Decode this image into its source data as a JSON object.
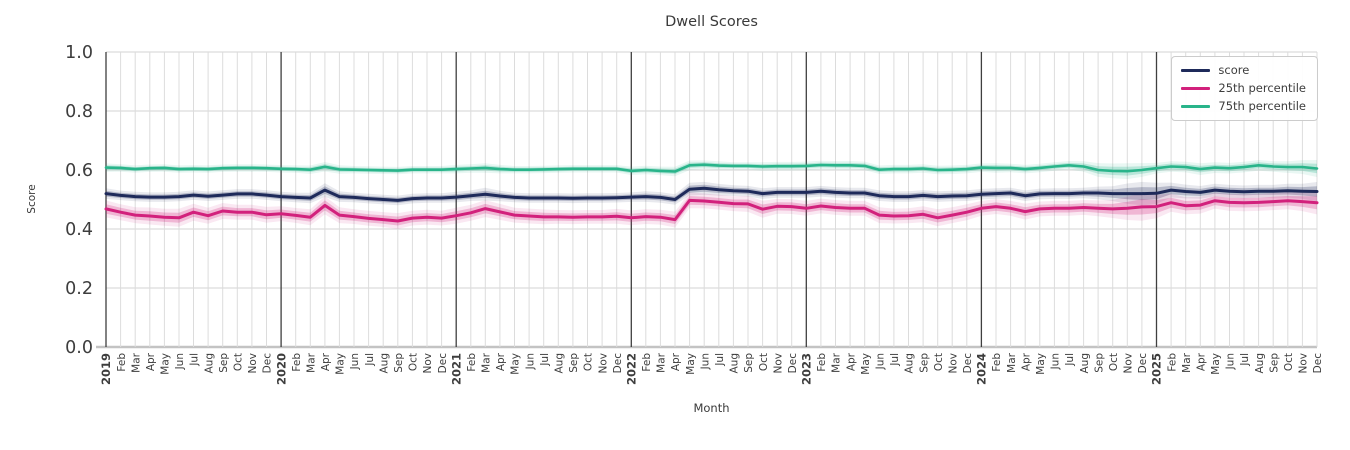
{
  "chart_data": {
    "type": "line",
    "title": "Dwell Scores",
    "xlabel": "Month",
    "ylabel": "Score",
    "ylim": [
      0.0,
      1.0
    ],
    "yticks": [
      0.0,
      0.2,
      0.4,
      0.6,
      0.8,
      1.0
    ],
    "grid": true,
    "legend_position": "upper right",
    "x": [
      "2019",
      "Feb",
      "Mar",
      "Apr",
      "May",
      "Jun",
      "Jul",
      "Aug",
      "Sep",
      "Oct",
      "Nov",
      "Dec",
      "2020",
      "Feb",
      "Mar",
      "Apr",
      "May",
      "Jun",
      "Jul",
      "Aug",
      "Sep",
      "Oct",
      "Nov",
      "Dec",
      "2021",
      "Feb",
      "Mar",
      "Apr",
      "May",
      "Jun",
      "Jul",
      "Aug",
      "Sep",
      "Oct",
      "Nov",
      "Dec",
      "2022",
      "Feb",
      "Mar",
      "Apr",
      "May",
      "Jun",
      "Jul",
      "Aug",
      "Sep",
      "Oct",
      "Nov",
      "Dec",
      "2023",
      "Feb",
      "Mar",
      "Apr",
      "May",
      "Jun",
      "Jul",
      "Aug",
      "Sep",
      "Oct",
      "Nov",
      "Dec",
      "2024",
      "Feb",
      "Mar",
      "Apr",
      "May",
      "Jun",
      "Jul",
      "Aug",
      "Sep",
      "Oct",
      "Nov",
      "Dec",
      "2025",
      "Feb",
      "Mar",
      "Apr",
      "May",
      "Jun",
      "Jul",
      "Aug",
      "Sep",
      "Oct",
      "Nov",
      "Dec"
    ],
    "series": [
      {
        "name": "score",
        "color": "#1e2a5a",
        "line_width": 3,
        "values": [
          0.52,
          0.514,
          0.51,
          0.508,
          0.508,
          0.51,
          0.515,
          0.511,
          0.515,
          0.519,
          0.519,
          0.515,
          0.51,
          0.507,
          0.505,
          0.532,
          0.51,
          0.507,
          0.503,
          0.5,
          0.497,
          0.503,
          0.505,
          0.505,
          0.508,
          0.513,
          0.518,
          0.512,
          0.507,
          0.505,
          0.505,
          0.505,
          0.504,
          0.505,
          0.505,
          0.506,
          0.508,
          0.51,
          0.507,
          0.5,
          0.535,
          0.538,
          0.533,
          0.53,
          0.528,
          0.52,
          0.524,
          0.524,
          0.524,
          0.528,
          0.524,
          0.522,
          0.522,
          0.513,
          0.51,
          0.51,
          0.514,
          0.51,
          0.512,
          0.513,
          0.518,
          0.52,
          0.522,
          0.513,
          0.519,
          0.52,
          0.52,
          0.522,
          0.522,
          0.52,
          0.52,
          0.52,
          0.521,
          0.532,
          0.527,
          0.524,
          0.532,
          0.528,
          0.526,
          0.528,
          0.528,
          0.53,
          0.528,
          0.527
        ],
        "band": [
          0.01,
          0.009,
          0.009,
          0.009,
          0.009,
          0.009,
          0.009,
          0.009,
          0.009,
          0.009,
          0.009,
          0.009,
          0.009,
          0.009,
          0.01,
          0.013,
          0.01,
          0.009,
          0.009,
          0.009,
          0.009,
          0.009,
          0.009,
          0.009,
          0.01,
          0.01,
          0.012,
          0.01,
          0.009,
          0.009,
          0.009,
          0.009,
          0.009,
          0.009,
          0.009,
          0.009,
          0.009,
          0.01,
          0.01,
          0.01,
          0.012,
          0.012,
          0.011,
          0.01,
          0.01,
          0.01,
          0.01,
          0.01,
          0.01,
          0.01,
          0.01,
          0.01,
          0.01,
          0.01,
          0.01,
          0.01,
          0.01,
          0.01,
          0.01,
          0.01,
          0.01,
          0.01,
          0.01,
          0.01,
          0.01,
          0.01,
          0.01,
          0.01,
          0.012,
          0.014,
          0.019,
          0.022,
          0.02,
          0.014,
          0.013,
          0.012,
          0.012,
          0.012,
          0.012,
          0.012,
          0.012,
          0.013,
          0.014,
          0.018
        ]
      },
      {
        "name": "25th percentile",
        "color": "#d2217c",
        "line_width": 3,
        "values": [
          0.468,
          0.457,
          0.447,
          0.444,
          0.44,
          0.438,
          0.457,
          0.445,
          0.461,
          0.457,
          0.457,
          0.448,
          0.452,
          0.446,
          0.44,
          0.48,
          0.447,
          0.442,
          0.436,
          0.432,
          0.427,
          0.437,
          0.44,
          0.437,
          0.445,
          0.455,
          0.469,
          0.458,
          0.447,
          0.444,
          0.441,
          0.441,
          0.44,
          0.441,
          0.441,
          0.443,
          0.438,
          0.442,
          0.44,
          0.432,
          0.497,
          0.495,
          0.491,
          0.486,
          0.485,
          0.467,
          0.477,
          0.476,
          0.47,
          0.478,
          0.473,
          0.47,
          0.47,
          0.447,
          0.444,
          0.445,
          0.45,
          0.438,
          0.447,
          0.457,
          0.47,
          0.476,
          0.47,
          0.459,
          0.468,
          0.47,
          0.47,
          0.473,
          0.47,
          0.468,
          0.47,
          0.475,
          0.476,
          0.489,
          0.479,
          0.481,
          0.496,
          0.49,
          0.489,
          0.49,
          0.493,
          0.496,
          0.493,
          0.489
        ],
        "band": [
          0.016,
          0.015,
          0.015,
          0.016,
          0.016,
          0.017,
          0.016,
          0.015,
          0.015,
          0.014,
          0.014,
          0.015,
          0.014,
          0.014,
          0.015,
          0.017,
          0.015,
          0.014,
          0.014,
          0.014,
          0.015,
          0.014,
          0.014,
          0.014,
          0.015,
          0.015,
          0.016,
          0.015,
          0.014,
          0.014,
          0.014,
          0.013,
          0.013,
          0.013,
          0.013,
          0.014,
          0.014,
          0.014,
          0.014,
          0.015,
          0.015,
          0.014,
          0.014,
          0.014,
          0.015,
          0.016,
          0.014,
          0.014,
          0.014,
          0.014,
          0.014,
          0.014,
          0.014,
          0.015,
          0.014,
          0.014,
          0.015,
          0.016,
          0.015,
          0.015,
          0.014,
          0.014,
          0.014,
          0.015,
          0.014,
          0.014,
          0.014,
          0.014,
          0.015,
          0.017,
          0.022,
          0.026,
          0.022,
          0.017,
          0.016,
          0.016,
          0.015,
          0.016,
          0.016,
          0.016,
          0.016,
          0.016,
          0.018,
          0.022
        ]
      },
      {
        "name": "75th percentile",
        "color": "#29b48a",
        "line_width": 2.6,
        "values": [
          0.608,
          0.607,
          0.603,
          0.606,
          0.607,
          0.603,
          0.604,
          0.603,
          0.606,
          0.607,
          0.607,
          0.606,
          0.604,
          0.603,
          0.601,
          0.611,
          0.602,
          0.601,
          0.6,
          0.599,
          0.598,
          0.601,
          0.601,
          0.601,
          0.603,
          0.605,
          0.607,
          0.603,
          0.601,
          0.601,
          0.602,
          0.603,
          0.604,
          0.604,
          0.604,
          0.604,
          0.597,
          0.6,
          0.597,
          0.595,
          0.616,
          0.618,
          0.615,
          0.614,
          0.614,
          0.612,
          0.613,
          0.613,
          0.614,
          0.617,
          0.616,
          0.616,
          0.614,
          0.601,
          0.603,
          0.603,
          0.605,
          0.6,
          0.601,
          0.603,
          0.608,
          0.607,
          0.607,
          0.603,
          0.607,
          0.612,
          0.616,
          0.612,
          0.6,
          0.597,
          0.596,
          0.6,
          0.606,
          0.612,
          0.61,
          0.603,
          0.608,
          0.606,
          0.61,
          0.616,
          0.612,
          0.61,
          0.61,
          0.605
        ],
        "band": [
          0.008,
          0.007,
          0.007,
          0.007,
          0.007,
          0.007,
          0.007,
          0.007,
          0.007,
          0.007,
          0.007,
          0.007,
          0.007,
          0.007,
          0.008,
          0.009,
          0.008,
          0.007,
          0.007,
          0.007,
          0.007,
          0.007,
          0.007,
          0.007,
          0.008,
          0.008,
          0.009,
          0.008,
          0.007,
          0.007,
          0.007,
          0.007,
          0.007,
          0.007,
          0.007,
          0.007,
          0.008,
          0.008,
          0.008,
          0.009,
          0.009,
          0.008,
          0.008,
          0.007,
          0.007,
          0.008,
          0.008,
          0.008,
          0.008,
          0.008,
          0.008,
          0.008,
          0.008,
          0.008,
          0.008,
          0.008,
          0.008,
          0.008,
          0.008,
          0.008,
          0.008,
          0.009,
          0.008,
          0.008,
          0.008,
          0.008,
          0.008,
          0.01,
          0.013,
          0.014,
          0.015,
          0.013,
          0.01,
          0.01,
          0.01,
          0.011,
          0.01,
          0.01,
          0.01,
          0.01,
          0.01,
          0.011,
          0.013,
          0.016
        ]
      }
    ],
    "style": {
      "grid_color": "#dcdcdc",
      "year_line_color": "#3f3f3f",
      "baseline_color": "#c3c3c3",
      "text_color": "#3d3d3d"
    }
  }
}
